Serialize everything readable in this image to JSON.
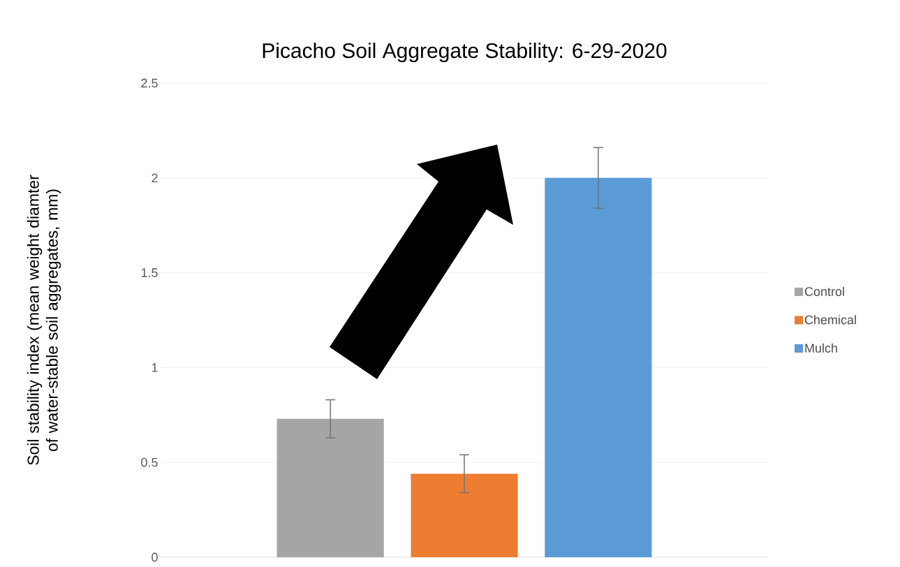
{
  "chart_data": {
    "type": "bar",
    "title": "Picacho Soil Aggregate Stability: 6-29-2020",
    "ylabel": "Soil stability index (mean weight diamter of water-stable soil aggregates, mm)",
    "categories": [
      null
    ],
    "series": [
      {
        "name": "Control",
        "color": "#a5a5a5",
        "values": [
          0.73
        ],
        "errors": [
          0.1
        ]
      },
      {
        "name": "Chemical",
        "color": "#ed7d31",
        "values": [
          0.44
        ],
        "errors": [
          0.1
        ]
      },
      {
        "name": "Mulch",
        "color": "#5b9bd5",
        "values": [
          2.0
        ],
        "errors": [
          0.16
        ]
      }
    ],
    "ylim": [
      0,
      2.5
    ],
    "yticks": [
      0,
      0.5,
      1,
      1.5,
      2,
      2.5
    ],
    "grid": "y",
    "legend": "right"
  }
}
